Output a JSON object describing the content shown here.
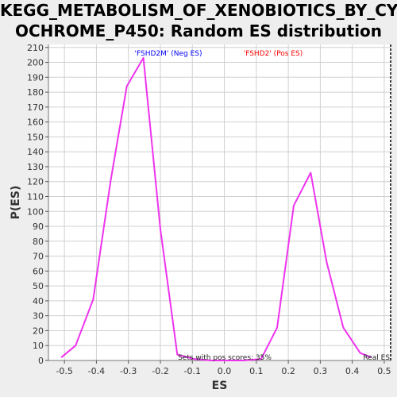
{
  "title_line1": "KEGG_METABOLISM_OF_XENOBIOTICS_BY_CYT",
  "title_line2": "OCHROME_P450: Random ES distribution",
  "colors": {
    "series": "#ee33ee",
    "neg_label": "#0000ff",
    "pos_label": "#ff0000",
    "plot_bg": "#ffffff",
    "grid": "#d0d0d0"
  },
  "chart_data": {
    "type": "line",
    "xlabel": "ES",
    "ylabel": "P(ES)",
    "xlim": [
      -0.55,
      0.52
    ],
    "ylim": [
      0,
      212
    ],
    "xticks": [
      -0.5,
      -0.4,
      -0.3,
      -0.2,
      -0.1,
      0.0,
      0.1,
      0.2,
      0.3,
      0.4,
      0.5
    ],
    "xtick_labels": [
      "-0.5",
      "-0.4",
      "-0.3",
      "-0.2",
      "-0.1",
      "0.0",
      "0.1",
      "0.2",
      "0.3",
      "0.4",
      "0.5"
    ],
    "yticks": [
      0,
      10,
      20,
      30,
      40,
      50,
      60,
      70,
      80,
      90,
      100,
      110,
      120,
      130,
      140,
      150,
      160,
      170,
      180,
      190,
      200,
      210
    ],
    "grid": true,
    "series": [
      {
        "x": [
          -0.51,
          -0.465,
          -0.41,
          -0.355,
          -0.305,
          -0.253,
          -0.2,
          -0.147,
          -0.095,
          -0.04,
          0.01,
          0.06,
          0.115,
          0.165,
          0.217,
          0.27,
          0.32,
          0.372,
          0.425,
          0.46
        ],
        "y": [
          2,
          10,
          41,
          121,
          184,
          203,
          88,
          4,
          1,
          0,
          0,
          0,
          1,
          22,
          104,
          126,
          66,
          22,
          5,
          2
        ]
      }
    ],
    "annotations": {
      "neg_label": "'FSHD2M' (Neg ES)",
      "pos_label": "'FSHD2' (Pos ES)",
      "sets_text": "Sets with pos scores: 35%",
      "real_es_label": "Real ES"
    },
    "real_es_x": 0.52
  }
}
